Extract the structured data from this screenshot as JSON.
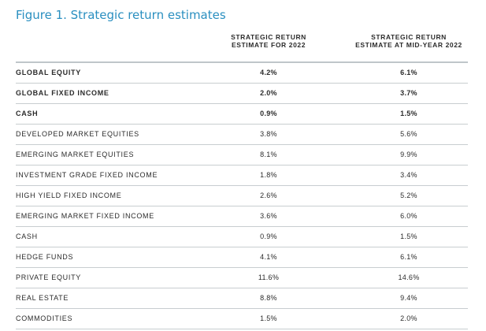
{
  "title": "Figure 1. Strategic return estimates",
  "columns": [
    {
      "line1": "STRATEGIC RETURN",
      "line2": "ESTIMATE FOR 2022"
    },
    {
      "line1": "STRATEGIC RETURN",
      "line2": "ESTIMATE AT MID-YEAR 2022"
    }
  ],
  "rows": [
    {
      "label": "GLOBAL EQUITY",
      "v2022": "4.2%",
      "vmid": "6.1%",
      "bold": true
    },
    {
      "label": "GLOBAL FIXED INCOME",
      "v2022": "2.0%",
      "vmid": "3.7%",
      "bold": true
    },
    {
      "label": "CASH",
      "v2022": "0.9%",
      "vmid": "1.5%",
      "bold": true
    },
    {
      "label": "DEVELOPED MARKET EQUITIES",
      "v2022": "3.8%",
      "vmid": "5.6%",
      "bold": false
    },
    {
      "label": "EMERGING MARKET EQUITIES",
      "v2022": "8.1%",
      "vmid": "9.9%",
      "bold": false
    },
    {
      "label": "INVESTMENT GRADE FIXED INCOME",
      "v2022": "1.8%",
      "vmid": "3.4%",
      "bold": false
    },
    {
      "label": "HIGH YIELD FIXED INCOME",
      "v2022": "2.6%",
      "vmid": "5.2%",
      "bold": false
    },
    {
      "label": "EMERGING MARKET FIXED INCOME",
      "v2022": "3.6%",
      "vmid": "6.0%",
      "bold": false
    },
    {
      "label": "CASH",
      "v2022": "0.9%",
      "vmid": "1.5%",
      "bold": false
    },
    {
      "label": "HEDGE FUNDS",
      "v2022": "4.1%",
      "vmid": "6.1%",
      "bold": false
    },
    {
      "label": "PRIVATE EQUITY",
      "v2022": "11.6%",
      "vmid": "14.6%",
      "bold": false
    },
    {
      "label": "REAL ESTATE",
      "v2022": "8.8%",
      "vmid": "9.4%",
      "bold": false
    },
    {
      "label": "COMMODITIES",
      "v2022": "1.5%",
      "vmid": "2.0%",
      "bold": false
    }
  ],
  "colors": {
    "title": "#2a8fc0",
    "text": "#2b2b2b",
    "rule": "#c8cdd0"
  }
}
